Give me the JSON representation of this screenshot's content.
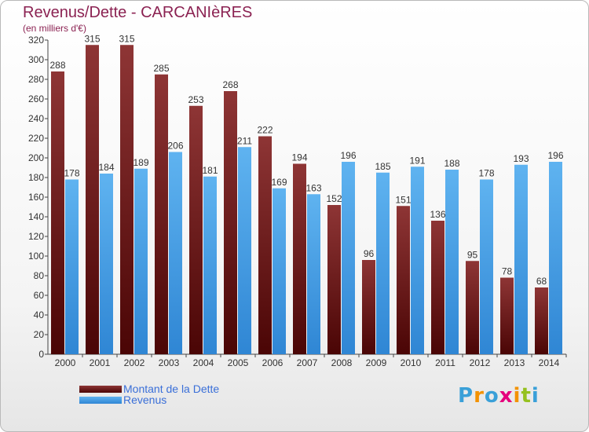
{
  "chart_data": {
    "type": "bar",
    "title": "Revenus/Dette - CARCANIèRES",
    "subtitle": "(en milliers d'€)",
    "categories": [
      "2000",
      "2001",
      "2002",
      "2003",
      "2004",
      "2005",
      "2006",
      "2007",
      "2008",
      "2009",
      "2010",
      "2011",
      "2012",
      "2013",
      "2014"
    ],
    "series": [
      {
        "name": "Montant de la Dette",
        "color": "#7a1e1e",
        "values": [
          288,
          315,
          315,
          285,
          253,
          268,
          222,
          194,
          152,
          96,
          151,
          136,
          95,
          78,
          68
        ]
      },
      {
        "name": "Revenus",
        "color": "#4da3e8",
        "values": [
          178,
          184,
          189,
          206,
          181,
          211,
          169,
          163,
          196,
          185,
          191,
          188,
          178,
          193,
          196
        ]
      }
    ],
    "ylim": [
      0,
      320
    ],
    "ytick_step": 20,
    "grid": false,
    "legend_position": "bottom-left"
  },
  "brand": {
    "logo_letters": [
      "P",
      "r",
      "o",
      "x",
      "i",
      "t",
      "i"
    ],
    "logo_colors": [
      "#3aa0d8",
      "#f39200",
      "#3aa0d8",
      "#e5007d",
      "#f39200",
      "#95c11f",
      "#3aa0d8"
    ]
  }
}
